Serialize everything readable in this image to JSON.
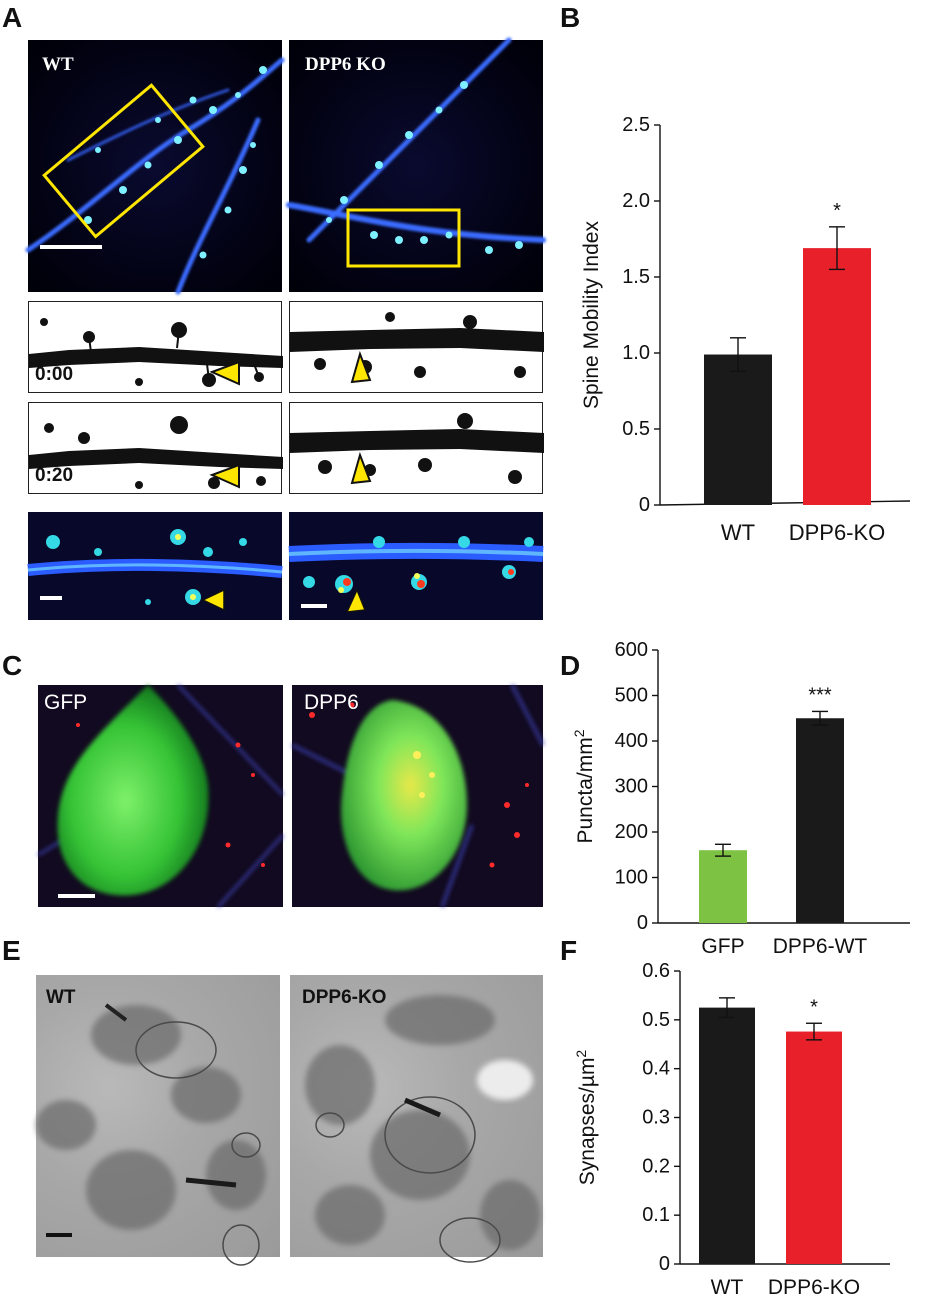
{
  "panels": {
    "A": "A",
    "B": "B",
    "C": "C",
    "D": "D",
    "E": "E",
    "F": "F"
  },
  "panel_a": {
    "left_label": "WT",
    "right_label": "DPP6 KO",
    "time_start": "0:00",
    "time_end": "0:20"
  },
  "panel_c": {
    "left_label": "GFP",
    "right_label": "DPP6"
  },
  "panel_e": {
    "left_label": "WT",
    "right_label": "DPP6-KO"
  },
  "chart_data": [
    {
      "panel": "B",
      "type": "bar",
      "categories": [
        "WT",
        "DPP6-KO"
      ],
      "values": [
        0.99,
        1.69
      ],
      "errors": [
        0.11,
        0.14
      ],
      "colors": [
        "#1a1a1a",
        "#e8202a"
      ],
      "significance": [
        "",
        "*"
      ],
      "ylabel": "Spine Mobility Index",
      "ylim": [
        0,
        2.5
      ],
      "yticks": [
        0,
        0.5,
        1.0,
        1.5,
        2.0,
        2.5
      ],
      "ytick_labels": [
        "0",
        "0.5",
        "1.0",
        "1.5",
        "2.0",
        "2.5"
      ]
    },
    {
      "panel": "D",
      "type": "bar",
      "categories": [
        "GFP",
        "DPP6-WT"
      ],
      "values": [
        160,
        450
      ],
      "errors": [
        13,
        15
      ],
      "colors": [
        "#7dc242",
        "#1a1a1a"
      ],
      "significance": [
        "",
        "***"
      ],
      "ylabel": "Puncta/mm",
      "ylabel_sup": "2",
      "ylim": [
        0,
        600
      ],
      "yticks": [
        0,
        100,
        200,
        300,
        400,
        500,
        600
      ],
      "ytick_labels": [
        "0",
        "100",
        "200",
        "300",
        "400",
        "500",
        "600"
      ]
    },
    {
      "panel": "F",
      "type": "bar",
      "categories": [
        "WT",
        "DPP6-KO"
      ],
      "values": [
        0.525,
        0.476
      ],
      "errors": [
        0.02,
        0.017
      ],
      "colors": [
        "#1a1a1a",
        "#e8202a"
      ],
      "significance": [
        "",
        "*"
      ],
      "ylabel": "Synapses/µm",
      "ylabel_sup": "2",
      "ylim": [
        0,
        0.6
      ],
      "yticks": [
        0,
        0.1,
        0.2,
        0.3,
        0.4,
        0.5,
        0.6
      ],
      "ytick_labels": [
        "0",
        "0.1",
        "0.2",
        "0.3",
        "0.4",
        "0.5",
        "0.6"
      ]
    }
  ]
}
